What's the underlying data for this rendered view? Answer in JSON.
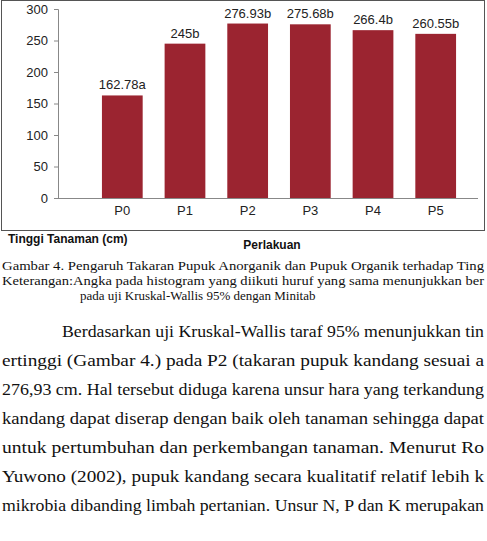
{
  "chart_data": {
    "type": "bar",
    "categories": [
      "P0",
      "P1",
      "P2",
      "P3",
      "P4",
      "P5"
    ],
    "values": [
      162.78,
      245,
      276.93,
      275.68,
      266.4,
      260.55
    ],
    "value_labels": [
      "162.78a",
      "245b",
      "276.93b",
      "275.68b",
      "266.4b",
      "260.55b"
    ],
    "data_labels": true,
    "color": "#9b2430",
    "ylim": [
      0,
      300
    ],
    "yticks": [
      0,
      50,
      100,
      150,
      200,
      250,
      300
    ],
    "grid": false,
    "x_label": "Perlakuan",
    "y_label": "Tinggi Tanaman (cm)",
    "annotations": [
      "Gambar 4.  Pengaruh Takaran Pupuk Anorganik dan Pupuk Organik terhadap Ting",
      "Keterangan:Angka pada histogram yang diikuti huruf yang sama menunjukkan ber",
      "pada uji Kruskal-Wallis 95% dengan Minitab",
      "Berdasarkan uji Kruskal-Wallis taraf 95% menunjukkan tin",
      "ertinggi (Gambar 4.) pada P2 (takaran pupuk kandang sesuai a",
      "276,93 cm. Hal tersebut diduga karena unsur hara yang terkandung",
      "kandang dapat diserap dengan baik oleh tanaman sehingga dapat",
      "untuk pertumbuhan dan perkembangan tanaman. Menurut Ro",
      "Yuwono (2002), pupuk kandang secara kualitatif relatif lebih k",
      "mikrobia dibanding limbah pertanian. Unsur N, P dan K merupakan"
    ]
  }
}
